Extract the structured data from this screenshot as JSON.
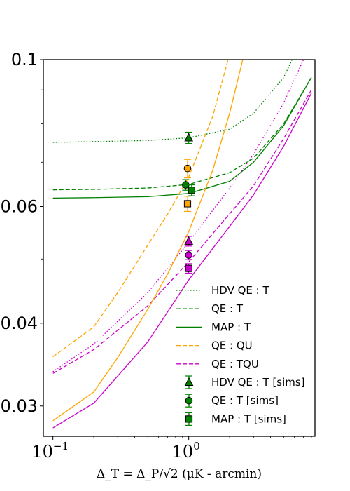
{
  "chart_data": {
    "type": "line",
    "title": "",
    "xlabel": "Δ_T = Δ_P/√2 (μK - arcmin)",
    "ylabel": "",
    "x_scale": "log",
    "y_scale": "log",
    "xlim": [
      0.085,
      8.5
    ],
    "ylim": [
      0.027,
      0.1
    ],
    "x_ticks": [
      {
        "value": 0.1,
        "label": "10",
        "exp": "−1"
      },
      {
        "value": 1,
        "label": "10",
        "exp": "0"
      }
    ],
    "y_ticks": [
      {
        "value": 0.1,
        "label": "0.1"
      },
      {
        "value": 0.06,
        "label": "0.06"
      },
      {
        "value": 0.04,
        "label": "0.04"
      },
      {
        "value": 0.03,
        "label": "0.03"
      }
    ],
    "grid": false,
    "legend_position": "lower-right",
    "series": [
      {
        "name": "HDV QE : T",
        "color": "#008000",
        "style": "dotted",
        "x": [
          0.1,
          0.2,
          0.5,
          1,
          2,
          3,
          5,
          8
        ],
        "y": [
          0.075,
          0.0752,
          0.0755,
          0.0762,
          0.0785,
          0.083,
          0.094,
          0.115
        ]
      },
      {
        "name": "QE : T",
        "color": "#008000",
        "style": "dashed",
        "x": [
          0.1,
          0.2,
          0.5,
          1,
          2,
          3,
          5,
          8
        ],
        "y": [
          0.0636,
          0.0637,
          0.064,
          0.0648,
          0.0675,
          0.071,
          0.08,
          0.094
        ]
      },
      {
        "name": "MAP : T",
        "color": "#008000",
        "style": "solid",
        "x": [
          0.1,
          0.2,
          0.5,
          1,
          2,
          3,
          5,
          8
        ],
        "y": [
          0.0618,
          0.0619,
          0.0621,
          0.0628,
          0.0655,
          0.07,
          0.0795,
          0.094
        ]
      },
      {
        "name": "QE : QU",
        "color": "#FFA500",
        "style": "dashed",
        "x": [
          0.1,
          0.2,
          0.3,
          0.5,
          0.7,
          1,
          1.5,
          2
        ],
        "y": [
          0.0356,
          0.0395,
          0.0445,
          0.0525,
          0.0585,
          0.0665,
          0.082,
          0.102
        ]
      },
      {
        "name": "QE : TQU",
        "color": "#CC00CC",
        "style": "dashed",
        "x": [
          0.1,
          0.2,
          0.5,
          1,
          2,
          3,
          5,
          8
        ],
        "y": [
          0.0336,
          0.0365,
          0.0425,
          0.0495,
          0.0585,
          0.0645,
          0.076,
          0.09
        ]
      },
      {
        "name": "",
        "color": "#FFA500",
        "style": "solid",
        "x": [
          0.1,
          0.2,
          0.3,
          0.5,
          0.7,
          1,
          1.5,
          2,
          2.5
        ],
        "y": [
          0.0285,
          0.0315,
          0.0355,
          0.042,
          0.0475,
          0.055,
          0.068,
          0.083,
          0.1
        ]
      },
      {
        "name": "",
        "color": "#CC00CC",
        "style": "solid",
        "x": [
          0.1,
          0.2,
          0.5,
          1,
          2,
          3,
          5,
          8
        ],
        "y": [
          0.0278,
          0.0303,
          0.0375,
          0.0465,
          0.056,
          0.0625,
          0.074,
          0.089
        ]
      },
      {
        "name": "",
        "color": "#CC00CC",
        "style": "dotted",
        "x": [
          0.1,
          0.2,
          0.5,
          1,
          2,
          3,
          5,
          7
        ],
        "y": [
          0.0338,
          0.0372,
          0.0445,
          0.053,
          0.064,
          0.072,
          0.086,
          0.1
        ]
      }
    ],
    "points": [
      {
        "name": "HDV QE : T [sims]",
        "marker": "triangle",
        "color": "#008000",
        "x": 1.0,
        "y": 0.0762,
        "err": 0.0015
      },
      {
        "name": "QE : T [sims]",
        "marker": "circle",
        "color": "#008000",
        "x": 0.95,
        "y": 0.0647,
        "err": 0.0012
      },
      {
        "name": "MAP : T [sims]",
        "marker": "square",
        "color": "#008000",
        "x": 1.05,
        "y": 0.0635,
        "err": 0.0012
      },
      {
        "name": "",
        "marker": "circle",
        "color": "#FFA500",
        "x": 0.98,
        "y": 0.0685,
        "err": 0.0022
      },
      {
        "name": "",
        "marker": "square",
        "color": "#FFA500",
        "x": 0.98,
        "y": 0.0606,
        "err": 0.0016
      },
      {
        "name": "",
        "marker": "triangle",
        "color": "#CC00CC",
        "x": 1.0,
        "y": 0.0532,
        "err": 0.0009
      },
      {
        "name": "",
        "marker": "circle",
        "color": "#CC00CC",
        "x": 1.0,
        "y": 0.0507,
        "err": 0.0008
      },
      {
        "name": "",
        "marker": "square",
        "color": "#CC00CC",
        "x": 1.0,
        "y": 0.0484,
        "err": 0.0008
      }
    ]
  }
}
